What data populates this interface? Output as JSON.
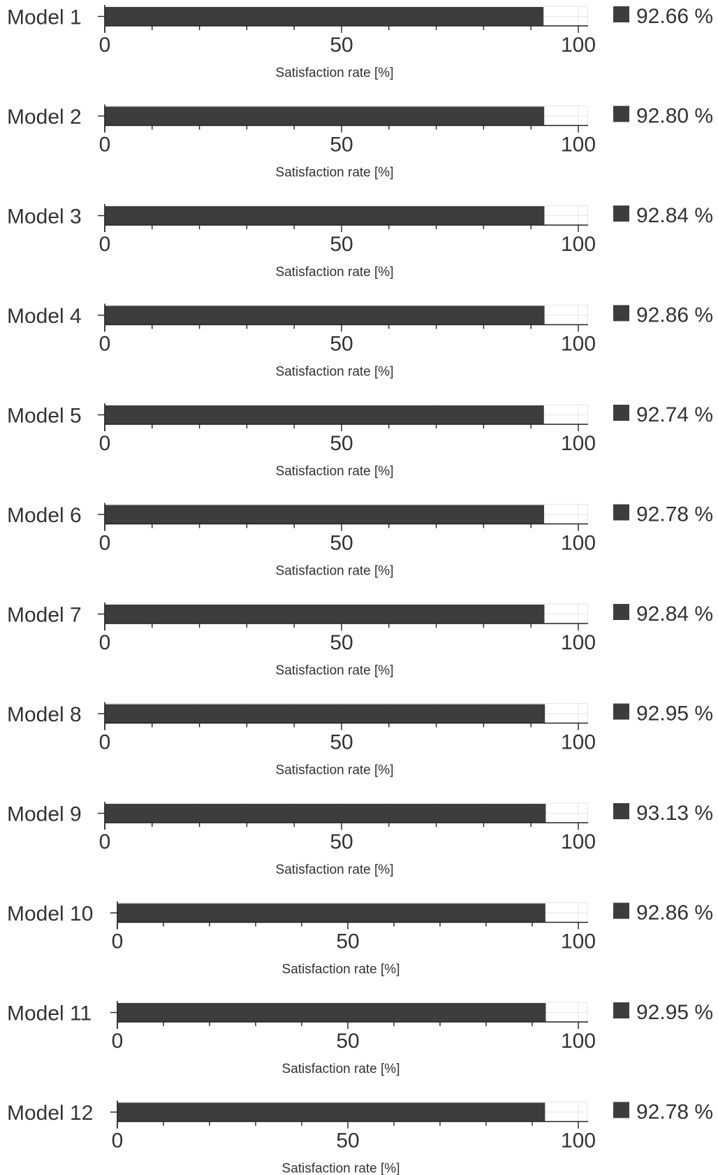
{
  "chart_data": [
    {
      "type": "bar",
      "label": "Model 1",
      "value": 92.66,
      "value_text": "92.66 %",
      "xlabel": "Satisfaction rate [%]",
      "xticks": [
        "0",
        "50",
        "100"
      ],
      "xlim": [
        0,
        102
      ],
      "grid": true,
      "bar_color": "#3d3d3d"
    },
    {
      "type": "bar",
      "label": "Model 2",
      "value": 92.8,
      "value_text": "92.80 %",
      "xlabel": "Satisfaction rate [%]",
      "xticks": [
        "0",
        "50",
        "100"
      ],
      "xlim": [
        0,
        102
      ],
      "grid": true,
      "bar_color": "#3d3d3d"
    },
    {
      "type": "bar",
      "label": "Model 3",
      "value": 92.84,
      "value_text": "92.84 %",
      "xlabel": "Satisfaction rate [%]",
      "xticks": [
        "0",
        "50",
        "100"
      ],
      "xlim": [
        0,
        102
      ],
      "grid": true,
      "bar_color": "#3d3d3d"
    },
    {
      "type": "bar",
      "label": "Model 4",
      "value": 92.86,
      "value_text": "92.86 %",
      "xlabel": "Satisfaction rate [%]",
      "xticks": [
        "0",
        "50",
        "100"
      ],
      "xlim": [
        0,
        102
      ],
      "grid": true,
      "bar_color": "#3d3d3d"
    },
    {
      "type": "bar",
      "label": "Model 5",
      "value": 92.74,
      "value_text": "92.74 %",
      "xlabel": "Satisfaction rate [%]",
      "xticks": [
        "0",
        "50",
        "100"
      ],
      "xlim": [
        0,
        102
      ],
      "grid": true,
      "bar_color": "#3d3d3d"
    },
    {
      "type": "bar",
      "label": "Model 6",
      "value": 92.78,
      "value_text": "92.78 %",
      "xlabel": "Satisfaction rate [%]",
      "xticks": [
        "0",
        "50",
        "100"
      ],
      "xlim": [
        0,
        102
      ],
      "grid": true,
      "bar_color": "#3d3d3d"
    },
    {
      "type": "bar",
      "label": "Model 7",
      "value": 92.84,
      "value_text": "92.84 %",
      "xlabel": "Satisfaction rate [%]",
      "xticks": [
        "0",
        "50",
        "100"
      ],
      "xlim": [
        0,
        102
      ],
      "grid": true,
      "bar_color": "#3d3d3d"
    },
    {
      "type": "bar",
      "label": "Model 8",
      "value": 92.95,
      "value_text": "92.95 %",
      "xlabel": "Satisfaction rate [%]",
      "xticks": [
        "0",
        "50",
        "100"
      ],
      "xlim": [
        0,
        102
      ],
      "grid": true,
      "bar_color": "#3d3d3d"
    },
    {
      "type": "bar",
      "label": "Model 9",
      "value": 93.13,
      "value_text": "93.13 %",
      "xlabel": "Satisfaction rate [%]",
      "xticks": [
        "0",
        "50",
        "100"
      ],
      "xlim": [
        0,
        102
      ],
      "grid": true,
      "bar_color": "#3d3d3d"
    },
    {
      "type": "bar",
      "label": "Model 10",
      "value": 92.86,
      "value_text": "92.86 %",
      "xlabel": "Satisfaction rate [%]",
      "xticks": [
        "0",
        "50",
        "100"
      ],
      "xlim": [
        0,
        102
      ],
      "grid": true,
      "bar_color": "#3d3d3d"
    },
    {
      "type": "bar",
      "label": "Model 11",
      "value": 92.95,
      "value_text": "92.95 %",
      "xlabel": "Satisfaction rate [%]",
      "xticks": [
        "0",
        "50",
        "100"
      ],
      "xlim": [
        0,
        102
      ],
      "grid": true,
      "bar_color": "#3d3d3d"
    },
    {
      "type": "bar",
      "label": "Model 12",
      "value": 92.78,
      "value_text": "92.78 %",
      "xlabel": "Satisfaction rate [%]",
      "xticks": [
        "0",
        "50",
        "100"
      ],
      "xlim": [
        0,
        102
      ],
      "grid": true,
      "bar_color": "#3d3d3d"
    }
  ]
}
